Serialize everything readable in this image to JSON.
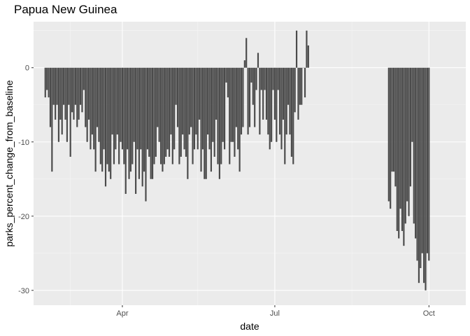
{
  "chart_data": {
    "type": "bar",
    "title": "Papua New Guinea",
    "xlabel": "date",
    "ylabel": "parks_percent_change_from_baseline",
    "x_ticks": [
      {
        "date": "2020-04-01",
        "label": "Apr"
      },
      {
        "date": "2020-07-01",
        "label": "Jul"
      },
      {
        "date": "2020-10-01",
        "label": "Oct"
      }
    ],
    "x_minor_ticks": [
      "2020-03-01",
      "2020-05-16",
      "2020-08-16"
    ],
    "y_ticks": [
      0,
      -10,
      -20,
      -30
    ],
    "y_minor_ticks": [
      5,
      -5,
      -15,
      -25
    ],
    "xlim": [
      "2020-02-08",
      "2020-10-23"
    ],
    "ylim": [
      -32,
      6.2
    ],
    "grid": true,
    "colors": {
      "bar": "#4a4a4a",
      "panel": "#ebebeb",
      "grid": "#ffffff"
    },
    "series": [
      {
        "start_date": "2020-02-15",
        "values": [
          -4,
          -3,
          -4,
          -8,
          -14,
          -5,
          -7,
          -5,
          -10,
          -7,
          -9,
          -5,
          -7,
          -10,
          -5,
          -12,
          -6,
          -7,
          -5,
          -8,
          -7,
          -5,
          -6,
          -3,
          -8,
          -10,
          -7,
          -11,
          -9,
          -11,
          -14,
          -8,
          -10,
          -13,
          -14,
          -11,
          -16,
          -13,
          -14,
          -15,
          -9,
          -13,
          -11,
          -9,
          -13,
          -10,
          -11,
          -13,
          -17,
          -11,
          -15,
          -14,
          -13,
          -10,
          -17,
          -11,
          -15,
          -11,
          -16,
          -14,
          -18,
          -11,
          -12,
          -15,
          -15,
          -13,
          -12,
          -8,
          -10,
          -13,
          -14,
          -13,
          -12,
          -11,
          -12,
          -9,
          -13,
          -11,
          -5,
          -8,
          -13,
          -12,
          -9,
          -11,
          -12,
          -15,
          -9,
          -8,
          -13,
          -11,
          -9,
          -11,
          -7,
          -14,
          -11,
          -15,
          -15,
          -9,
          -11,
          -14,
          -10,
          -12,
          -7,
          -13,
          -15,
          -13,
          -10,
          -11,
          -2,
          -4,
          -13,
          -10,
          -10,
          -12,
          -8,
          -11,
          -14,
          -9,
          -8,
          1,
          4,
          -9,
          -8,
          -2,
          -5,
          -8,
          -3,
          2,
          -9,
          -3,
          -7,
          -3,
          -7,
          -9,
          -11,
          -10,
          -3,
          -7,
          -10,
          -3,
          -9,
          -11,
          -7,
          -13,
          -9,
          -5,
          -9,
          -12,
          -13,
          -6,
          5,
          -7,
          -5,
          -5,
          0,
          -4,
          5,
          3
        ]
      },
      {
        "start_date": "2020-09-07",
        "values": [
          -18,
          -19,
          -14,
          -14,
          -16,
          -22,
          -23,
          -19,
          -22,
          -24,
          -21,
          -18,
          -20,
          -16,
          -10,
          -21,
          -23,
          -26,
          -29,
          -27,
          -25,
          -29,
          -30,
          -25,
          -26
        ]
      }
    ]
  }
}
